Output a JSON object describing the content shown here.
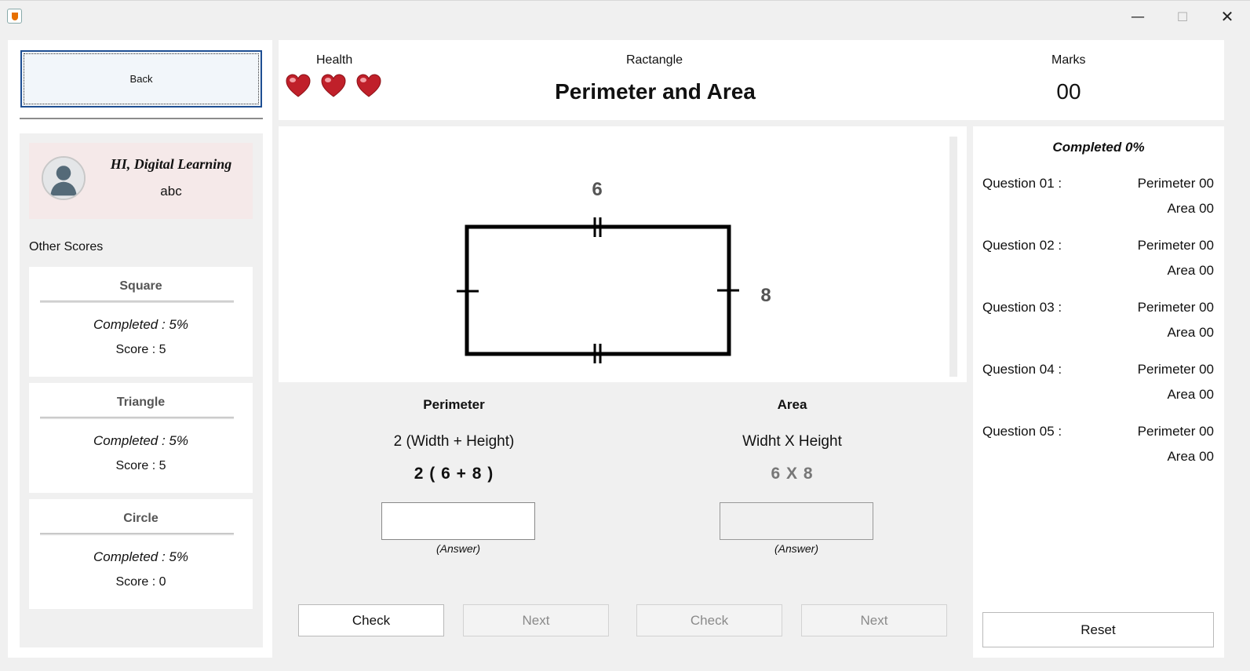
{
  "window": {
    "minimize_glyph": "—",
    "maximize_glyph": "☐",
    "close_glyph": "✕"
  },
  "sidebar": {
    "back_label": "Back",
    "greeting": "HI, Digital Learning",
    "username": "abc",
    "other_scores_title": "Other Scores",
    "cards": [
      {
        "name": "Square",
        "completed": "Completed : 5%",
        "score": "Score : 5"
      },
      {
        "name": "Triangle",
        "completed": "Completed : 5%",
        "score": "Score : 5"
      },
      {
        "name": "Circle",
        "completed": "Completed : 5%",
        "score": "Score : 0"
      }
    ]
  },
  "header": {
    "health_label": "Health",
    "hearts": 3,
    "shape_label": "Ractangle",
    "title": "Perimeter and Area",
    "marks_label": "Marks",
    "marks_value": "00"
  },
  "diagram": {
    "width_label": "6",
    "height_label": "8"
  },
  "perimeter": {
    "title": "Perimeter",
    "formula": "2 (Width + Height)",
    "calc": "2 ( 6 + 8 )",
    "answer_value": "",
    "answer_label": "(Answer)",
    "check_label": "Check",
    "next_label": "Next"
  },
  "area": {
    "title": "Area",
    "formula": "Widht X Height",
    "calc": "6 X 8",
    "answer_value": "",
    "answer_label": "(Answer)",
    "check_label": "Check",
    "next_label": "Next"
  },
  "progress": {
    "completed": "Completed 0%",
    "questions": [
      {
        "label": "Question 01 :",
        "perimeter": "Perimeter 00",
        "area": "Area 00"
      },
      {
        "label": "Question 02 :",
        "perimeter": "Perimeter 00",
        "area": "Area 00"
      },
      {
        "label": "Question 03 :",
        "perimeter": "Perimeter 00",
        "area": "Area 00"
      },
      {
        "label": "Question 04 :",
        "perimeter": "Perimeter 00",
        "area": "Area 00"
      },
      {
        "label": "Question 05 :",
        "perimeter": "Perimeter 00",
        "area": "Area 00"
      }
    ],
    "reset_label": "Reset"
  },
  "colors": {
    "heart": "#c0202a",
    "accent_border": "#1f4f93",
    "profile_bg": "#f5e9e9"
  }
}
